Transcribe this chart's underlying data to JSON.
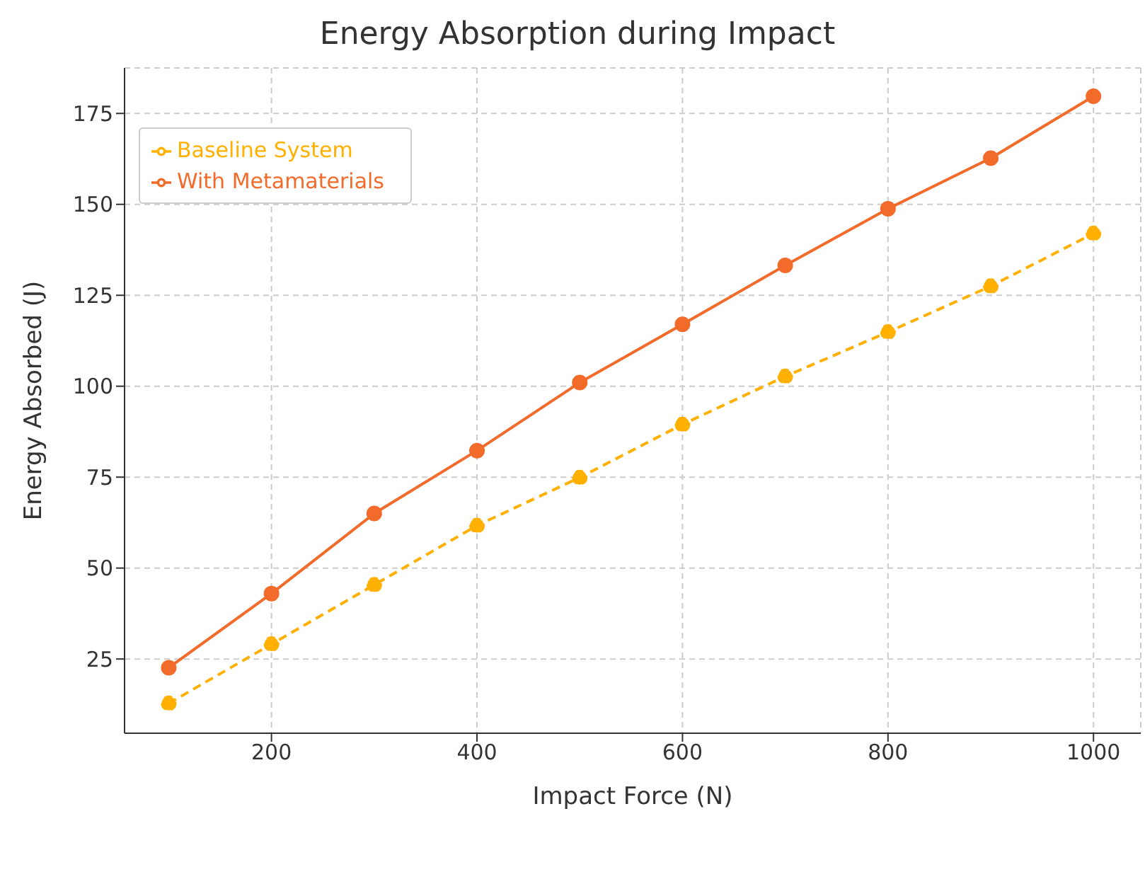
{
  "chart_data": {
    "type": "line",
    "title": "Energy Absorption during Impact",
    "xlabel": "Impact Force (N)",
    "ylabel": "Energy Absorbed (J)",
    "x": [
      100,
      200,
      300,
      400,
      500,
      600,
      700,
      800,
      900,
      1000
    ],
    "series": [
      {
        "name": "Baseline System",
        "color": "#ffb000",
        "line_style": "dashed",
        "values": [
          12.8,
          29.1,
          45.4,
          61.7,
          74.9,
          89.5,
          102.7,
          114.9,
          127.5,
          142
        ]
      },
      {
        "name": "With Metamaterials",
        "color": "#f26b2a",
        "line_style": "solid",
        "values": [
          22.6,
          43,
          65,
          82.3,
          101,
          117,
          133.2,
          148.8,
          162.7,
          179.7
        ]
      }
    ],
    "xlim": [
      57,
      1046
    ],
    "xticks": [
      200,
      400,
      600,
      800,
      1000
    ],
    "ylim": [
      4.6,
      187.5
    ],
    "yticks": [
      25,
      50,
      75,
      100,
      125,
      150,
      175
    ],
    "grid": true,
    "legend": "top left",
    "marker": "circle"
  }
}
